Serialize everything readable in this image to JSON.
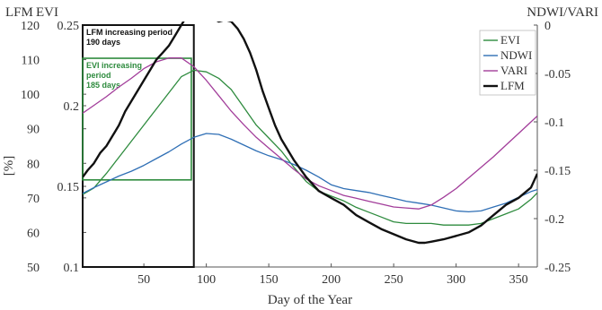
{
  "chart_data": {
    "type": "line",
    "title": "",
    "xlabel": "Day of the Year",
    "xlim": [
      1,
      365
    ],
    "x_ticks": [
      "50",
      "100",
      "150",
      "200",
      "250",
      "300",
      "350"
    ],
    "left_axes": {
      "lfm": {
        "title": "LFM",
        "unit_label": "[%]",
        "ylim": [
          50,
          120
        ],
        "ticks": [
          "50",
          "60",
          "70",
          "80",
          "90",
          "100",
          "110",
          "120"
        ]
      },
      "evi": {
        "title": "EVI",
        "ylim": [
          0.1,
          0.25
        ],
        "ticks": [
          "0.1",
          "0.15",
          "0.2",
          "0.25"
        ]
      }
    },
    "right_axis": {
      "title": "NDWI/VARI",
      "ylim": [
        -0.25,
        0
      ],
      "ticks": [
        "-0.25",
        "-0.2",
        "-0.15",
        "-0.1",
        "-0.05",
        "0"
      ]
    },
    "series": [
      {
        "name": "EVI",
        "axis": "evi",
        "color": "#2e8b3e",
        "points": [
          [
            1,
            0.145
          ],
          [
            10,
            0.149
          ],
          [
            20,
            0.158
          ],
          [
            30,
            0.168
          ],
          [
            40,
            0.178
          ],
          [
            50,
            0.188
          ],
          [
            60,
            0.198
          ],
          [
            70,
            0.208
          ],
          [
            80,
            0.218
          ],
          [
            90,
            0.222
          ],
          [
            100,
            0.221
          ],
          [
            110,
            0.217
          ],
          [
            120,
            0.21
          ],
          [
            130,
            0.199
          ],
          [
            140,
            0.188
          ],
          [
            150,
            0.18
          ],
          [
            160,
            0.172
          ],
          [
            170,
            0.162
          ],
          [
            180,
            0.153
          ],
          [
            190,
            0.147
          ],
          [
            200,
            0.144
          ],
          [
            210,
            0.141
          ],
          [
            220,
            0.137
          ],
          [
            230,
            0.134
          ],
          [
            240,
            0.131
          ],
          [
            250,
            0.128
          ],
          [
            260,
            0.127
          ],
          [
            270,
            0.127
          ],
          [
            280,
            0.127
          ],
          [
            290,
            0.126
          ],
          [
            300,
            0.126
          ],
          [
            310,
            0.126
          ],
          [
            320,
            0.127
          ],
          [
            330,
            0.13
          ],
          [
            340,
            0.133
          ],
          [
            350,
            0.136
          ],
          [
            360,
            0.142
          ],
          [
            365,
            0.146
          ]
        ]
      },
      {
        "name": "NDWI",
        "axis": "right",
        "color": "#2f6fb5",
        "points": [
          [
            1,
            -0.174
          ],
          [
            10,
            -0.168
          ],
          [
            20,
            -0.162
          ],
          [
            30,
            -0.156
          ],
          [
            40,
            -0.151
          ],
          [
            50,
            -0.145
          ],
          [
            60,
            -0.138
          ],
          [
            70,
            -0.131
          ],
          [
            80,
            -0.123
          ],
          [
            90,
            -0.116
          ],
          [
            100,
            -0.112
          ],
          [
            110,
            -0.113
          ],
          [
            120,
            -0.118
          ],
          [
            130,
            -0.124
          ],
          [
            140,
            -0.13
          ],
          [
            150,
            -0.135
          ],
          [
            160,
            -0.139
          ],
          [
            170,
            -0.144
          ],
          [
            180,
            -0.15
          ],
          [
            190,
            -0.157
          ],
          [
            200,
            -0.165
          ],
          [
            210,
            -0.169
          ],
          [
            220,
            -0.171
          ],
          [
            230,
            -0.173
          ],
          [
            240,
            -0.176
          ],
          [
            250,
            -0.179
          ],
          [
            260,
            -0.182
          ],
          [
            270,
            -0.184
          ],
          [
            280,
            -0.186
          ],
          [
            290,
            -0.189
          ],
          [
            300,
            -0.192
          ],
          [
            310,
            -0.193
          ],
          [
            320,
            -0.192
          ],
          [
            330,
            -0.188
          ],
          [
            340,
            -0.184
          ],
          [
            350,
            -0.178
          ],
          [
            360,
            -0.172
          ],
          [
            365,
            -0.17
          ]
        ]
      },
      {
        "name": "VARI",
        "axis": "right",
        "color": "#a23d9a",
        "points": [
          [
            1,
            -0.091
          ],
          [
            10,
            -0.083
          ],
          [
            20,
            -0.074
          ],
          [
            30,
            -0.064
          ],
          [
            40,
            -0.055
          ],
          [
            50,
            -0.045
          ],
          [
            60,
            -0.038
          ],
          [
            70,
            -0.034
          ],
          [
            80,
            -0.034
          ],
          [
            90,
            -0.043
          ],
          [
            100,
            -0.057
          ],
          [
            110,
            -0.073
          ],
          [
            120,
            -0.089
          ],
          [
            130,
            -0.103
          ],
          [
            140,
            -0.116
          ],
          [
            150,
            -0.127
          ],
          [
            160,
            -0.138
          ],
          [
            170,
            -0.149
          ],
          [
            180,
            -0.159
          ],
          [
            190,
            -0.166
          ],
          [
            200,
            -0.171
          ],
          [
            210,
            -0.176
          ],
          [
            220,
            -0.179
          ],
          [
            230,
            -0.182
          ],
          [
            240,
            -0.185
          ],
          [
            250,
            -0.188
          ],
          [
            260,
            -0.189
          ],
          [
            270,
            -0.19
          ],
          [
            280,
            -0.186
          ],
          [
            290,
            -0.178
          ],
          [
            300,
            -0.169
          ],
          [
            310,
            -0.158
          ],
          [
            320,
            -0.147
          ],
          [
            330,
            -0.136
          ],
          [
            340,
            -0.124
          ],
          [
            350,
            -0.112
          ],
          [
            360,
            -0.1
          ],
          [
            365,
            -0.094
          ]
        ]
      },
      {
        "name": "LFM",
        "axis": "lfm",
        "color": "#111111",
        "points": [
          [
            1,
            76
          ],
          [
            5,
            78
          ],
          [
            10,
            80
          ],
          [
            15,
            83
          ],
          [
            20,
            85
          ],
          [
            25,
            88
          ],
          [
            30,
            91
          ],
          [
            35,
            95
          ],
          [
            40,
            98
          ],
          [
            45,
            101
          ],
          [
            50,
            104
          ],
          [
            55,
            107
          ],
          [
            60,
            110
          ],
          [
            65,
            112
          ],
          [
            70,
            114
          ],
          [
            75,
            117
          ],
          [
            80,
            120
          ],
          [
            85,
            123
          ],
          [
            90,
            124
          ],
          [
            95,
            124
          ],
          [
            100,
            123.5
          ],
          [
            105,
            122
          ],
          [
            110,
            121
          ],
          [
            115,
            121.5
          ],
          [
            120,
            121
          ],
          [
            125,
            119
          ],
          [
            130,
            116
          ],
          [
            135,
            112
          ],
          [
            140,
            107
          ],
          [
            145,
            101
          ],
          [
            150,
            96
          ],
          [
            155,
            91
          ],
          [
            160,
            87
          ],
          [
            165,
            84
          ],
          [
            170,
            81
          ],
          [
            180,
            76
          ],
          [
            190,
            72
          ],
          [
            200,
            70
          ],
          [
            210,
            68
          ],
          [
            220,
            65
          ],
          [
            230,
            63
          ],
          [
            240,
            61
          ],
          [
            250,
            59.5
          ],
          [
            260,
            58
          ],
          [
            270,
            57
          ],
          [
            275,
            57
          ],
          [
            280,
            57.3
          ],
          [
            290,
            58
          ],
          [
            300,
            59
          ],
          [
            310,
            60
          ],
          [
            320,
            62
          ],
          [
            330,
            65
          ],
          [
            340,
            68
          ],
          [
            350,
            70
          ],
          [
            360,
            73
          ],
          [
            365,
            77
          ]
        ]
      }
    ],
    "annotations": [
      {
        "text": [
          "LFM increasing period",
          "190 days"
        ],
        "color": "#111111",
        "x_range": [
          1,
          90
        ],
        "y_range_lfm": [
          50,
          120
        ]
      },
      {
        "text": [
          "EVI increasing",
          "period",
          "185 days"
        ],
        "color": "#2e8b3e",
        "x_range": [
          1,
          88
        ],
        "y_range_lfm": [
          75.2,
          110.4
        ]
      }
    ],
    "legend": {
      "placement": "top-right",
      "entries": [
        "EVI",
        "NDWI",
        "VARI",
        "LFM"
      ]
    },
    "grid": false
  }
}
